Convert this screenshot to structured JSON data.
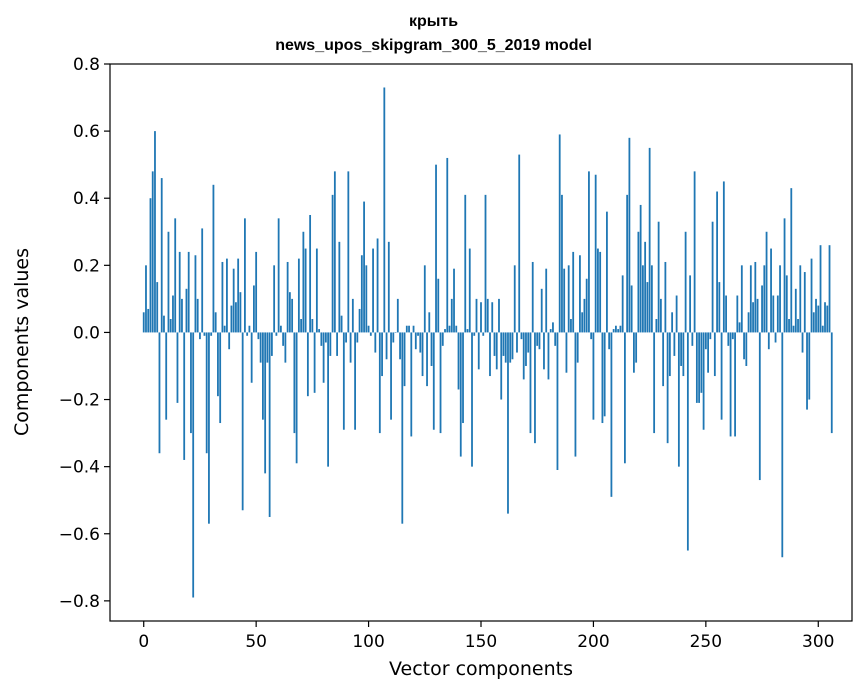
{
  "chart_data": {
    "type": "bar",
    "title": "крыть",
    "subtitle": "news_upos_skipgram_300_5_2019 model",
    "xlabel": "Vector components",
    "ylabel": "Components values",
    "xlim": [
      -15,
      315
    ],
    "ylim": [
      -0.86,
      0.8
    ],
    "xticks": [
      0,
      50,
      100,
      150,
      200,
      250,
      300
    ],
    "yticks": [
      -0.8,
      -0.6,
      -0.4,
      -0.2,
      0.0,
      0.2,
      0.4,
      0.6,
      0.8
    ],
    "ytick_labels": [
      "−0.8",
      "−0.6",
      "−0.4",
      "−0.2",
      "0.0",
      "0.2",
      "0.4",
      "0.6",
      "0.8"
    ],
    "grid": false,
    "legend": "none",
    "bar_color": "#1f77b4",
    "values": [
      0.06,
      0.2,
      0.07,
      0.4,
      0.48,
      0.6,
      0.15,
      -0.36,
      0.46,
      0.05,
      -0.26,
      0.3,
      0.04,
      0.11,
      0.34,
      -0.21,
      0.24,
      0.1,
      -0.38,
      0.13,
      0.24,
      -0.3,
      -0.79,
      0.23,
      0.1,
      -0.02,
      0.31,
      -0.01,
      -0.36,
      -0.57,
      -0.01,
      0.44,
      0.06,
      -0.19,
      -0.27,
      0.21,
      0.02,
      0.22,
      -0.05,
      0.08,
      0.19,
      0.09,
      0.22,
      0.12,
      -0.53,
      0.34,
      -0.01,
      0.02,
      -0.15,
      0.14,
      0.24,
      -0.02,
      -0.09,
      -0.26,
      -0.42,
      -0.09,
      -0.55,
      -0.07,
      0.2,
      -0.01,
      0.34,
      0.02,
      -0.04,
      -0.09,
      0.21,
      0.12,
      0.1,
      -0.3,
      -0.39,
      0.22,
      0.04,
      0.3,
      0.25,
      -0.19,
      0.35,
      0.04,
      -0.18,
      0.25,
      0.01,
      -0.04,
      -0.15,
      -0.03,
      -0.4,
      -0.07,
      0.41,
      0.48,
      -0.07,
      0.27,
      0.05,
      -0.29,
      -0.03,
      0.48,
      -0.09,
      0.1,
      -0.29,
      -0.03,
      0.07,
      0.23,
      0.39,
      0.2,
      0.02,
      -0.01,
      0.25,
      -0.06,
      0.28,
      -0.3,
      -0.13,
      0.73,
      -0.08,
      0.27,
      -0.26,
      -0.03,
      0.0,
      0.1,
      -0.08,
      -0.57,
      -0.16,
      0.02,
      0.02,
      -0.31,
      0.02,
      -0.05,
      -0.01,
      -0.06,
      -0.13,
      0.2,
      -0.16,
      0.06,
      -0.1,
      -0.29,
      0.5,
      0.16,
      -0.3,
      -0.04,
      0.01,
      0.52,
      0.02,
      0.1,
      0.19,
      0.02,
      -0.17,
      -0.37,
      -0.27,
      0.41,
      0.01,
      0.25,
      -0.4,
      -0.01,
      0.1,
      -0.11,
      0.09,
      -0.01,
      0.41,
      0.1,
      -0.13,
      0.09,
      -0.07,
      -0.11,
      0.1,
      -0.2,
      -0.07,
      -0.09,
      -0.54,
      -0.09,
      -0.08,
      0.2,
      -0.06,
      0.53,
      -0.02,
      -0.14,
      -0.1,
      -0.06,
      -0.3,
      0.21,
      -0.33,
      -0.04,
      -0.05,
      0.13,
      -0.11,
      0.19,
      -0.14,
      0.01,
      0.03,
      -0.04,
      -0.41,
      0.59,
      0.41,
      0.19,
      -0.12,
      0.2,
      0.04,
      0.24,
      -0.37,
      -0.09,
      0.23,
      0.06,
      0.1,
      0.16,
      0.48,
      -0.02,
      -0.26,
      0.47,
      0.25,
      0.24,
      -0.27,
      -0.25,
      0.36,
      -0.05,
      -0.49,
      0.01,
      0.02,
      0.01,
      0.02,
      0.17,
      -0.39,
      0.41,
      0.58,
      0.14,
      -0.12,
      -0.09,
      0.3,
      0.38,
      0.2,
      0.27,
      0.15,
      0.55,
      0.2,
      -0.3,
      0.04,
      0.33,
      0.1,
      -0.16,
      0.21,
      -0.33,
      -0.13,
      0.06,
      -0.07,
      0.11,
      -0.4,
      -0.1,
      -0.13,
      0.3,
      -0.65,
      0.17,
      -0.04,
      0.48,
      -0.21,
      -0.21,
      -0.18,
      -0.29,
      -0.05,
      -0.12,
      -0.02,
      0.33,
      -0.13,
      0.42,
      0.15,
      -0.26,
      0.45,
      0.11,
      -0.04,
      -0.31,
      -0.02,
      -0.31,
      0.11,
      0.03,
      0.2,
      -0.08,
      -0.1,
      0.06,
      0.2,
      0.09,
      0.21,
      0.1,
      -0.44,
      0.14,
      0.2,
      0.3,
      -0.05,
      0.25,
      0.11,
      -0.03,
      0.11,
      0.2,
      -0.67,
      0.34,
      0.17,
      0.04,
      0.43,
      0.02,
      0.13,
      0.04,
      0.2,
      -0.06,
      0.18,
      -0.23,
      -0.2,
      0.22,
      0.06,
      0.1,
      0.08,
      0.26,
      0.02,
      0.09,
      0.08,
      0.26,
      -0.3
    ]
  }
}
